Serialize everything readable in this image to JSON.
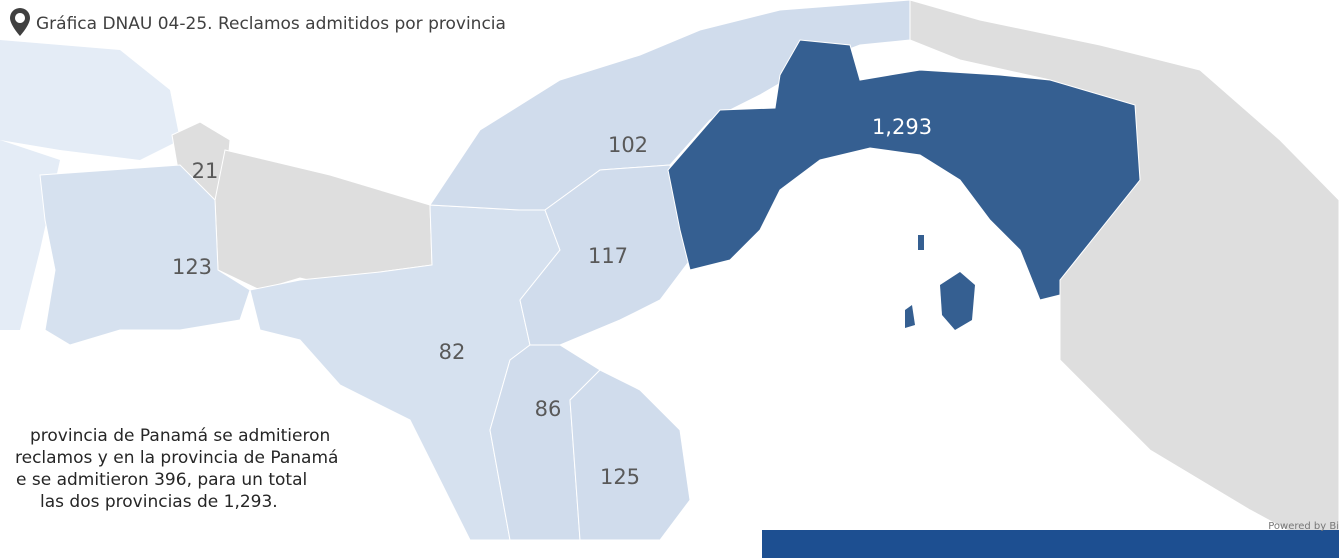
{
  "header": {
    "title": "Gráfica DNAU 04-25. Reclamos admitidos por provincia"
  },
  "regions": [
    {
      "label": "21"
    },
    {
      "label": "123"
    },
    {
      "label": "82"
    },
    {
      "label": "102"
    },
    {
      "label": "117"
    },
    {
      "label": "86"
    },
    {
      "label": "125"
    },
    {
      "label": "1,293"
    }
  ],
  "text": {
    "lines": [
      "provincia de Panamá se admitieron",
      "reclamos y en la provincia de Panamá",
      "e se admitieron 396, para un total",
      "las dos provincias de 1,293."
    ]
  },
  "footer": {
    "powered": "Powered by Bi"
  }
}
